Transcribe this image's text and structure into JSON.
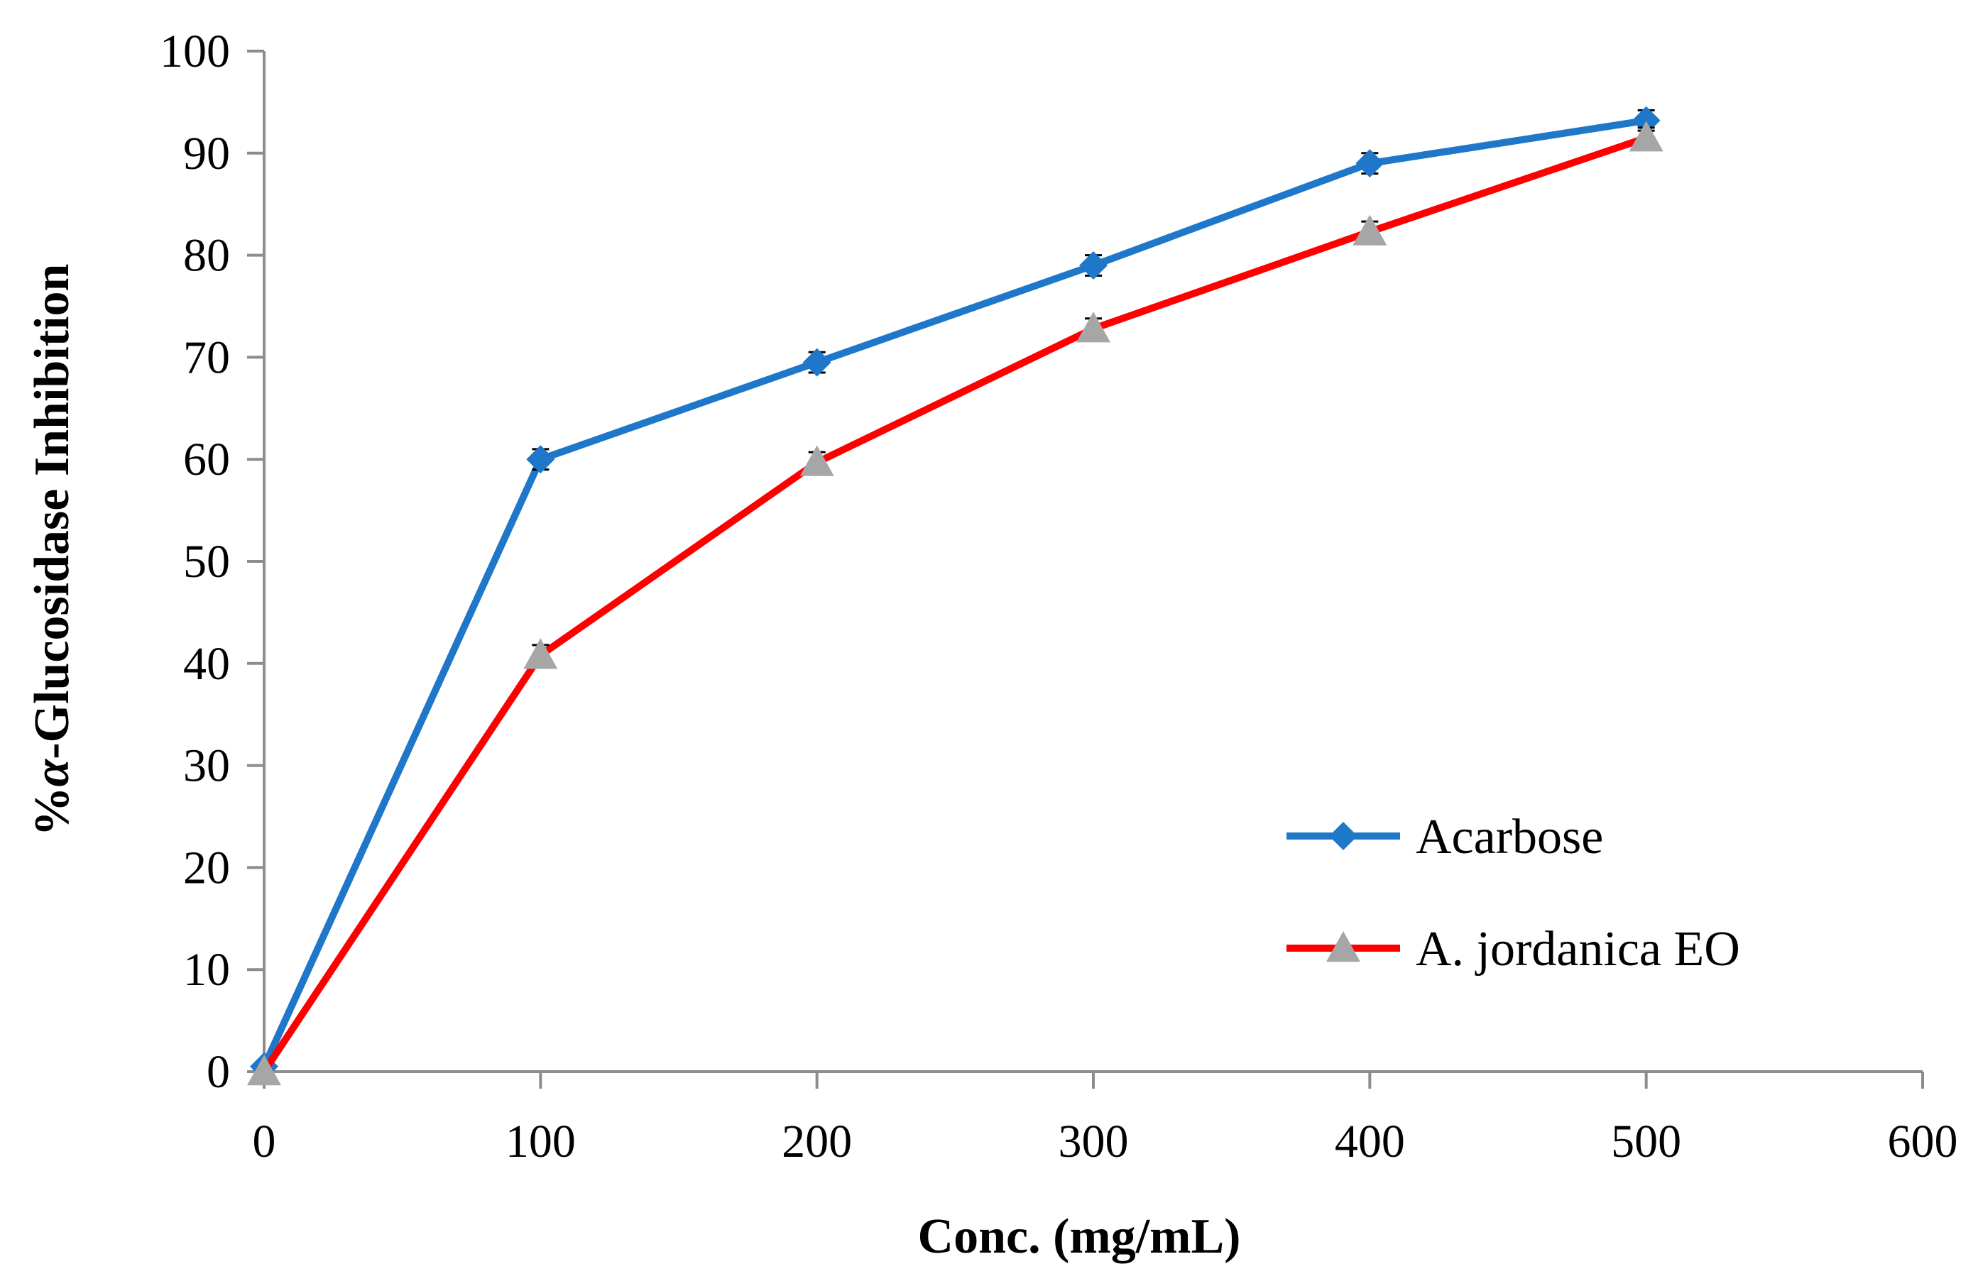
{
  "chart_data": {
    "type": "line",
    "title": "",
    "xlabel": "Conc. (mg/mL)",
    "ylabel_prefix": "%",
    "ylabel_greek": "α",
    "ylabel_rest": "-Glucosidase Inhibition",
    "xlim": [
      0,
      600
    ],
    "ylim": [
      0,
      100
    ],
    "xticks": [
      0,
      100,
      200,
      300,
      400,
      500,
      600
    ],
    "yticks": [
      0,
      10,
      20,
      30,
      40,
      50,
      60,
      70,
      80,
      90,
      100
    ],
    "grid": false,
    "legend_position": "bottom-right",
    "series": [
      {
        "name": "Acarbose",
        "color": "#1f77c9",
        "marker": "diamond",
        "marker_color": "#1f77c9",
        "x": [
          0,
          100,
          200,
          300,
          400,
          500
        ],
        "y": [
          0.5,
          60,
          69.5,
          79,
          89,
          93.2
        ],
        "err": [
          0,
          1.0,
          1.0,
          1.0,
          1.0,
          1.0
        ]
      },
      {
        "name": "A. jordanica EO",
        "color": "#ff0000",
        "marker": "triangle",
        "marker_color": "#a6a6a6",
        "x": [
          0,
          100,
          200,
          300,
          400,
          500
        ],
        "y": [
          0,
          40.8,
          59.7,
          72.8,
          82.3,
          91.5
        ],
        "err": [
          0,
          1.0,
          1.0,
          1.0,
          1.0,
          1.0
        ]
      }
    ]
  }
}
